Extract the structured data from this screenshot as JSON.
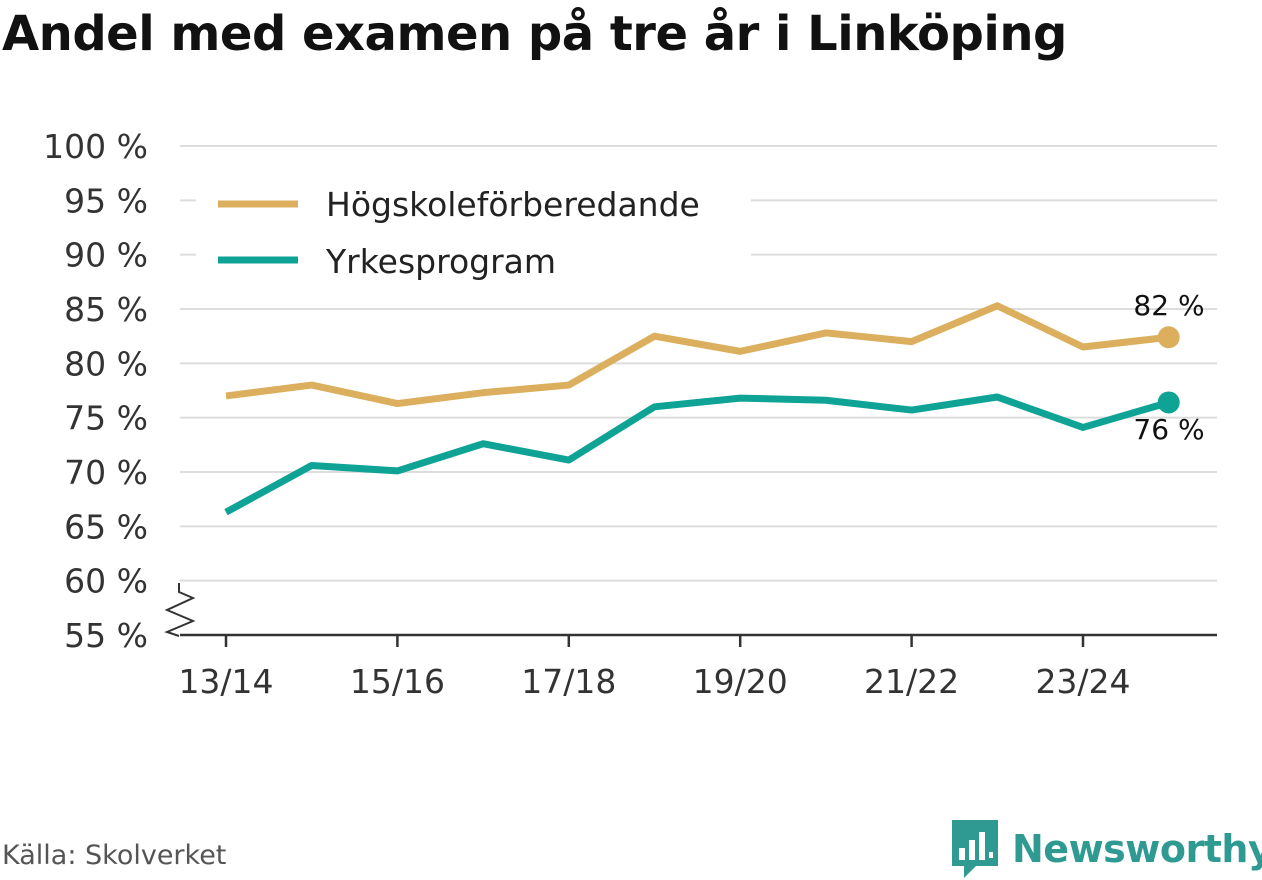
{
  "header": {
    "title": "Andel med examen på tre år i Linköping"
  },
  "footer": {
    "source": "Källa: Skolverket",
    "brand": "Newsworthy"
  },
  "icons": {
    "brand_logo": "newsworthy-logo-icon",
    "axis_break": "axis-break-icon"
  },
  "colors": {
    "hogskole": "#dbaf5e",
    "yrke": "#0fa396",
    "grid": "#dddddd",
    "axis": "#333333",
    "brand": "#2e9a92"
  },
  "chart_data": {
    "type": "line",
    "title": "Andel med examen på tre år i Linköping",
    "xlabel": "",
    "ylabel": "",
    "x": [
      "13/14",
      "14/15",
      "15/16",
      "16/17",
      "17/18",
      "18/19",
      "19/20",
      "20/21",
      "21/22",
      "22/23",
      "23/24",
      "24/25"
    ],
    "x_tick_labels": [
      "13/14",
      "15/16",
      "17/18",
      "19/20",
      "21/22",
      "23/24"
    ],
    "x_tick_indices": [
      0,
      2,
      4,
      6,
      8,
      10
    ],
    "ylim": [
      55,
      100
    ],
    "y_ticks": [
      55,
      60,
      65,
      70,
      75,
      80,
      85,
      90,
      95,
      100
    ],
    "y_tick_labels": [
      "55 %",
      "60 %",
      "65 %",
      "70 %",
      "75 %",
      "80 %",
      "85 %",
      "90 %",
      "95 %",
      "100 %"
    ],
    "grid": true,
    "axis_break": true,
    "legend_position": "top-left",
    "series": [
      {
        "name": "Högskoleförberedande",
        "color": "#dbaf5e",
        "values": [
          77.0,
          78.0,
          76.3,
          77.3,
          78.0,
          82.5,
          81.1,
          82.8,
          82.0,
          85.3,
          81.5,
          82.4
        ],
        "end_label": "82 %"
      },
      {
        "name": "Yrkesprogram",
        "color": "#0fa396",
        "values": [
          66.3,
          70.6,
          70.1,
          72.6,
          71.1,
          76.0,
          76.8,
          76.6,
          75.7,
          76.9,
          74.1,
          76.4
        ],
        "end_label": "76 %"
      }
    ]
  }
}
